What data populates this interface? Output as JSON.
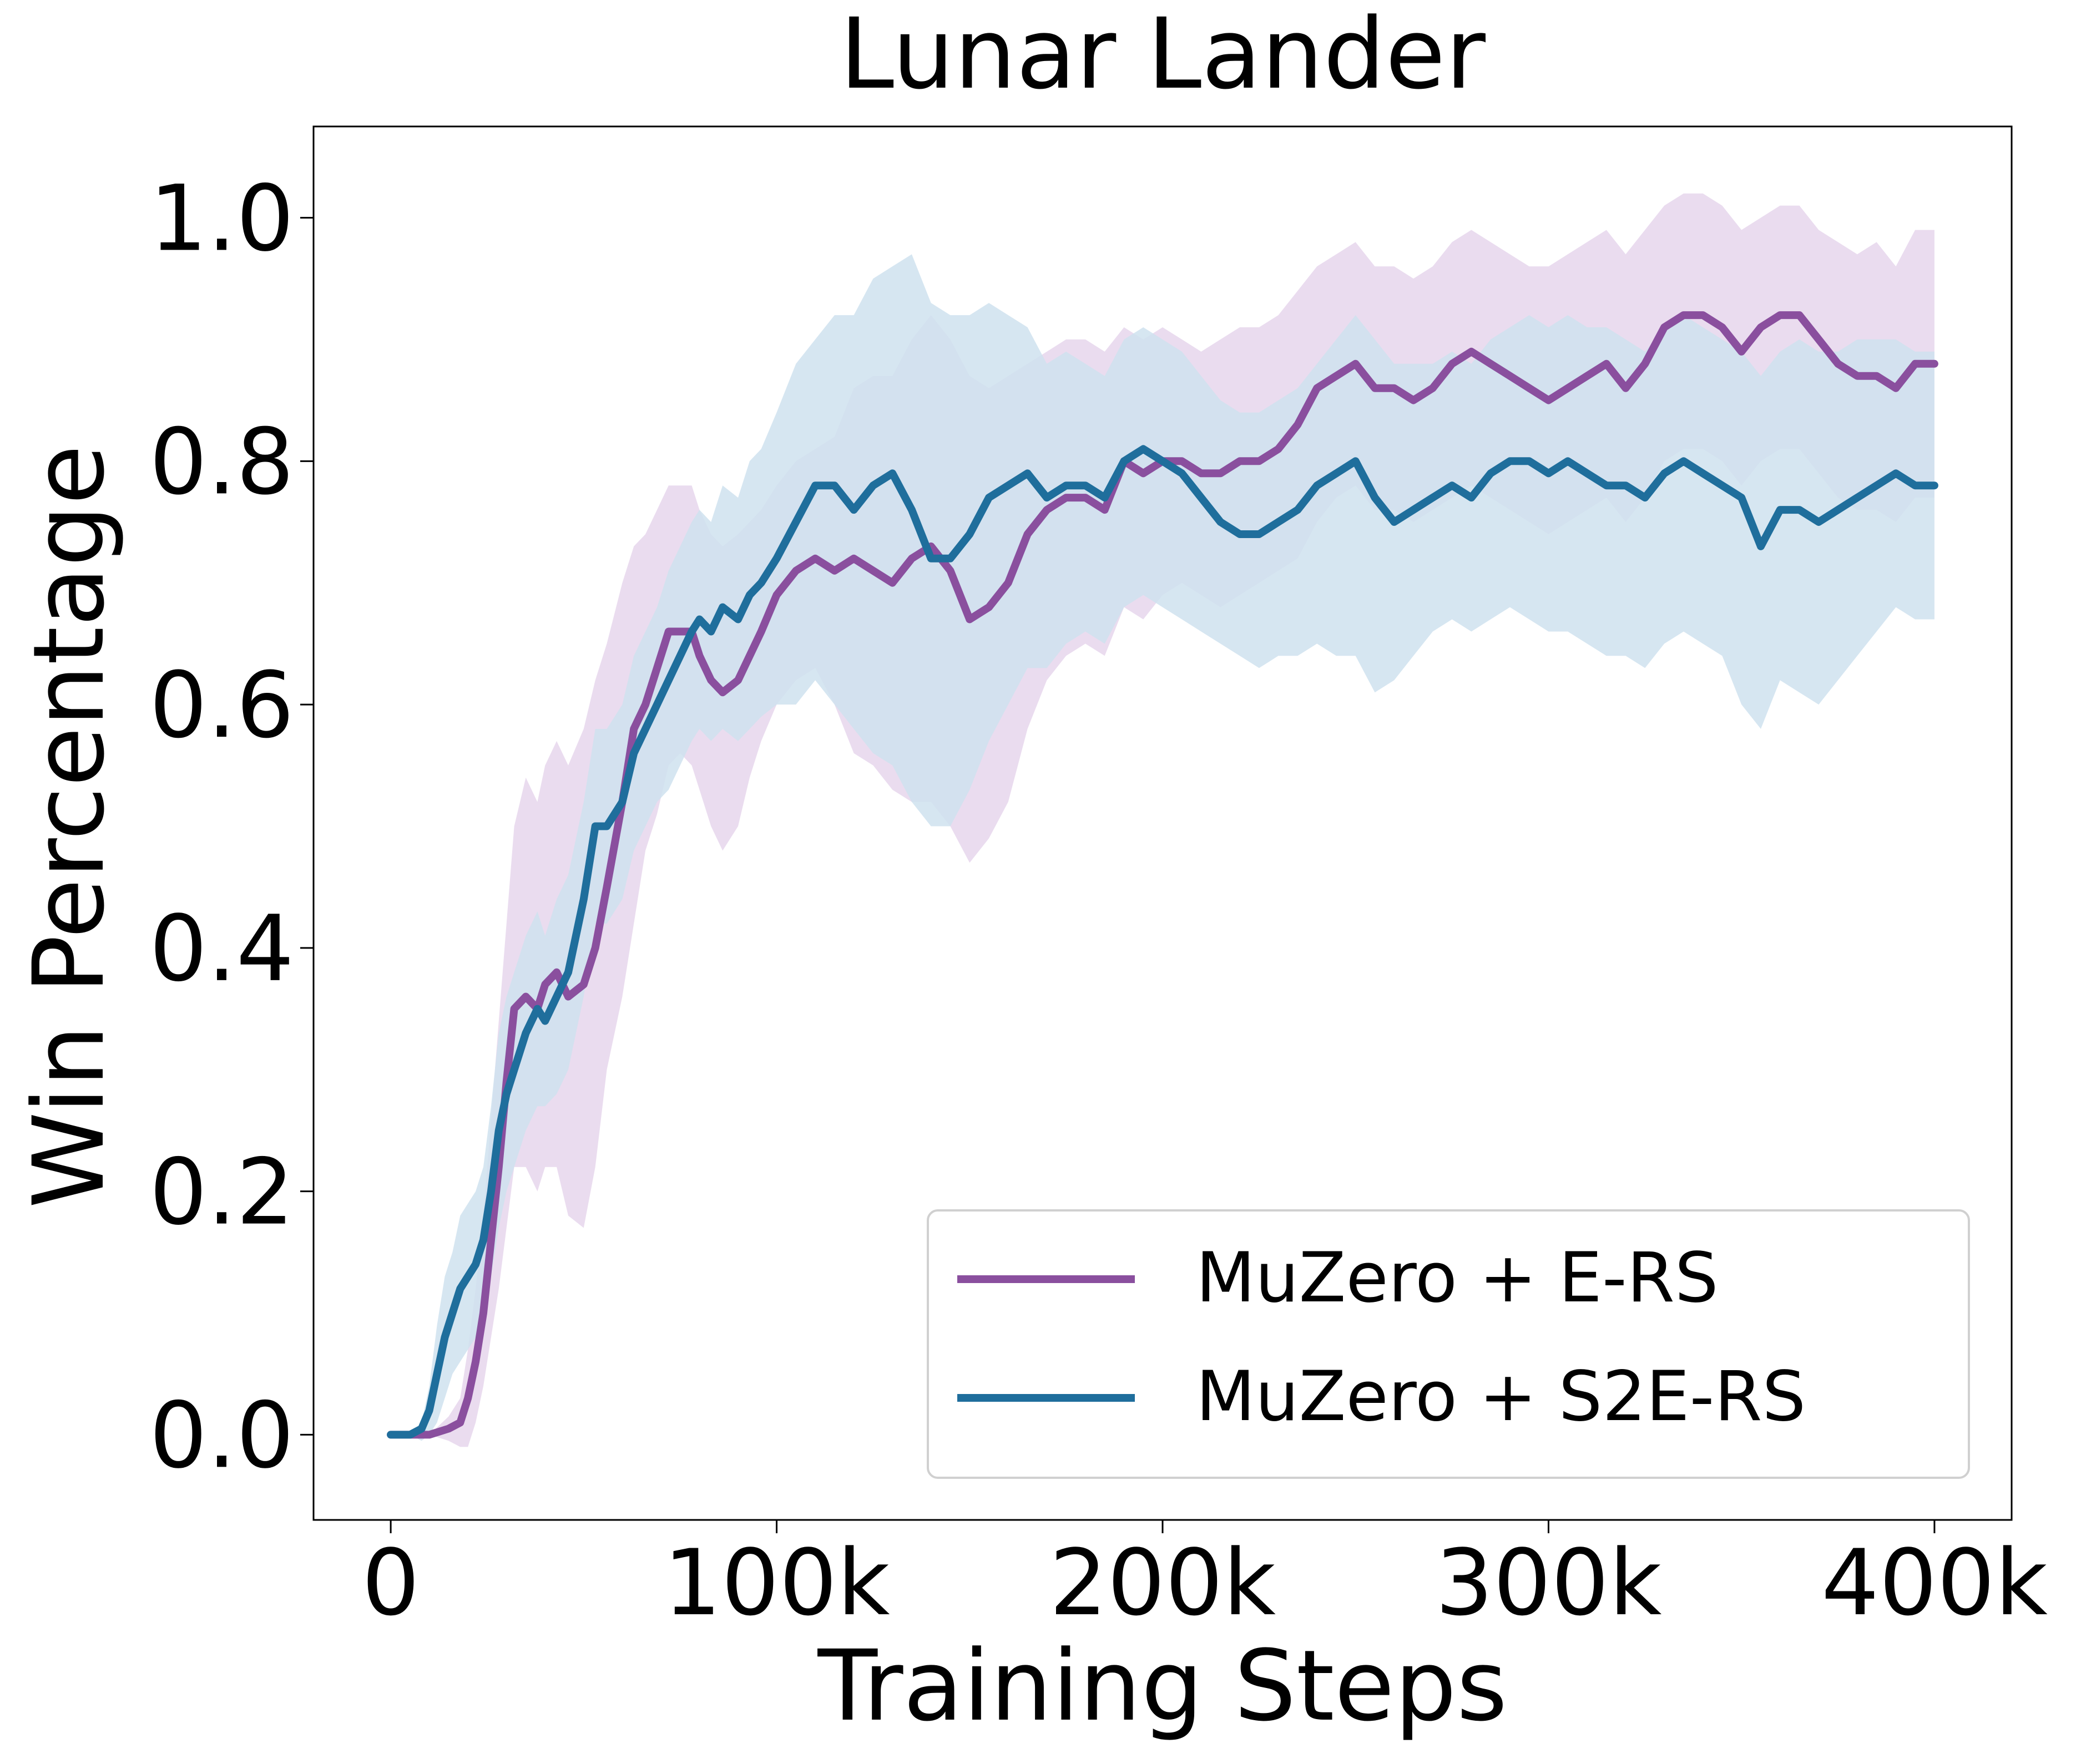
{
  "chart_data": {
    "type": "line",
    "title": "Lunar Lander",
    "xlabel": "Training Steps",
    "ylabel": "Win Percentage",
    "xlim": [
      -20000,
      420000
    ],
    "ylim": [
      -0.07,
      1.075
    ],
    "xticks": [
      0,
      100000,
      200000,
      300000,
      400000
    ],
    "xtick_labels": [
      "0",
      "100k",
      "200k",
      "300k",
      "400k"
    ],
    "yticks": [
      0.0,
      0.2,
      0.4,
      0.6,
      0.8,
      1.0
    ],
    "ytick_labels": [
      "0.0",
      "0.2",
      "0.4",
      "0.6",
      "0.8",
      "1.0"
    ],
    "grid": false,
    "legend_position": "bottom-right",
    "series": [
      {
        "name": "MuZero + E-RS",
        "color": "#8a4f9e",
        "band_color": "#e6d6ec",
        "x": [
          0,
          5000,
          10000,
          15000,
          18000,
          20000,
          22000,
          24000,
          26000,
          28000,
          30000,
          32000,
          35000,
          38000,
          40000,
          43000,
          46000,
          50000,
          53000,
          56000,
          60000,
          63000,
          66000,
          69000,
          72000,
          75000,
          78000,
          80000,
          83000,
          86000,
          90000,
          93000,
          96000,
          100000,
          105000,
          110000,
          115000,
          120000,
          125000,
          130000,
          135000,
          140000,
          145000,
          150000,
          155000,
          160000,
          165000,
          170000,
          175000,
          180000,
          185000,
          190000,
          195000,
          200000,
          205000,
          210000,
          215000,
          220000,
          225000,
          230000,
          235000,
          240000,
          245000,
          250000,
          255000,
          260000,
          265000,
          270000,
          275000,
          280000,
          285000,
          290000,
          295000,
          300000,
          305000,
          310000,
          315000,
          320000,
          325000,
          330000,
          335000,
          340000,
          345000,
          350000,
          355000,
          360000,
          365000,
          370000,
          375000,
          380000,
          385000,
          390000,
          395000,
          400000
        ],
        "values": [
          0.0,
          0.0,
          0.0,
          0.005,
          0.01,
          0.03,
          0.06,
          0.1,
          0.16,
          0.22,
          0.29,
          0.35,
          0.36,
          0.35,
          0.37,
          0.38,
          0.36,
          0.37,
          0.4,
          0.45,
          0.52,
          0.58,
          0.6,
          0.63,
          0.66,
          0.66,
          0.66,
          0.64,
          0.62,
          0.61,
          0.62,
          0.64,
          0.66,
          0.69,
          0.71,
          0.72,
          0.71,
          0.72,
          0.71,
          0.7,
          0.72,
          0.73,
          0.71,
          0.67,
          0.68,
          0.7,
          0.74,
          0.76,
          0.77,
          0.77,
          0.76,
          0.8,
          0.79,
          0.8,
          0.8,
          0.79,
          0.79,
          0.8,
          0.8,
          0.81,
          0.83,
          0.86,
          0.87,
          0.88,
          0.86,
          0.86,
          0.85,
          0.86,
          0.88,
          0.89,
          0.88,
          0.87,
          0.86,
          0.85,
          0.86,
          0.87,
          0.88,
          0.86,
          0.88,
          0.91,
          0.92,
          0.92,
          0.91,
          0.89,
          0.91,
          0.92,
          0.92,
          0.9,
          0.88,
          0.87,
          0.87,
          0.86,
          0.88,
          0.88
        ],
        "lower": [
          0.0,
          0.0,
          0.0,
          -0.005,
          -0.01,
          -0.01,
          0.01,
          0.04,
          0.08,
          0.12,
          0.17,
          0.22,
          0.22,
          0.2,
          0.22,
          0.22,
          0.18,
          0.17,
          0.22,
          0.3,
          0.36,
          0.42,
          0.48,
          0.51,
          0.55,
          0.56,
          0.55,
          0.53,
          0.5,
          0.48,
          0.5,
          0.54,
          0.57,
          0.6,
          0.62,
          0.63,
          0.6,
          0.56,
          0.55,
          0.53,
          0.52,
          0.52,
          0.5,
          0.47,
          0.49,
          0.52,
          0.58,
          0.62,
          0.64,
          0.65,
          0.64,
          0.68,
          0.67,
          0.69,
          0.7,
          0.69,
          0.68,
          0.69,
          0.7,
          0.71,
          0.72,
          0.75,
          0.77,
          0.78,
          0.76,
          0.76,
          0.75,
          0.76,
          0.77,
          0.78,
          0.77,
          0.76,
          0.75,
          0.74,
          0.75,
          0.76,
          0.77,
          0.75,
          0.77,
          0.8,
          0.81,
          0.81,
          0.8,
          0.78,
          0.8,
          0.81,
          0.81,
          0.79,
          0.77,
          0.76,
          0.76,
          0.75,
          0.77,
          0.77
        ],
        "upper": [
          0.0,
          0.0,
          0.0,
          0.015,
          0.03,
          0.07,
          0.12,
          0.18,
          0.26,
          0.34,
          0.42,
          0.5,
          0.54,
          0.52,
          0.55,
          0.57,
          0.55,
          0.58,
          0.62,
          0.65,
          0.7,
          0.73,
          0.74,
          0.76,
          0.78,
          0.78,
          0.78,
          0.76,
          0.74,
          0.73,
          0.74,
          0.75,
          0.76,
          0.78,
          0.8,
          0.81,
          0.82,
          0.86,
          0.87,
          0.87,
          0.9,
          0.92,
          0.9,
          0.87,
          0.86,
          0.87,
          0.88,
          0.89,
          0.9,
          0.9,
          0.89,
          0.91,
          0.9,
          0.91,
          0.9,
          0.89,
          0.9,
          0.91,
          0.91,
          0.92,
          0.94,
          0.96,
          0.97,
          0.98,
          0.96,
          0.96,
          0.95,
          0.96,
          0.98,
          0.99,
          0.98,
          0.97,
          0.96,
          0.96,
          0.97,
          0.98,
          0.99,
          0.97,
          0.99,
          1.01,
          1.02,
          1.02,
          1.01,
          0.99,
          1.0,
          1.01,
          1.01,
          0.99,
          0.98,
          0.97,
          0.98,
          0.96,
          0.99,
          0.99
        ]
      },
      {
        "name": "MuZero + S2E-RS",
        "color": "#1f6e9c",
        "band_color": "#cfe2ef",
        "x": [
          0,
          5000,
          8000,
          10000,
          12000,
          14000,
          16000,
          18000,
          20000,
          22000,
          24000,
          26000,
          28000,
          30000,
          32000,
          35000,
          38000,
          40000,
          43000,
          46000,
          50000,
          53000,
          56000,
          60000,
          63000,
          66000,
          69000,
          72000,
          75000,
          78000,
          80000,
          83000,
          86000,
          90000,
          93000,
          96000,
          100000,
          105000,
          110000,
          115000,
          120000,
          125000,
          130000,
          135000,
          140000,
          145000,
          150000,
          155000,
          160000,
          165000,
          170000,
          175000,
          180000,
          185000,
          190000,
          195000,
          200000,
          205000,
          210000,
          215000,
          220000,
          225000,
          230000,
          235000,
          240000,
          245000,
          250000,
          255000,
          260000,
          265000,
          270000,
          275000,
          280000,
          285000,
          290000,
          295000,
          300000,
          305000,
          310000,
          315000,
          320000,
          325000,
          330000,
          335000,
          340000,
          345000,
          350000,
          355000,
          360000,
          365000,
          370000,
          375000,
          380000,
          385000,
          390000,
          395000,
          400000
        ],
        "values": [
          0.0,
          0.0,
          0.005,
          0.02,
          0.05,
          0.08,
          0.1,
          0.12,
          0.13,
          0.14,
          0.16,
          0.2,
          0.25,
          0.28,
          0.3,
          0.33,
          0.35,
          0.34,
          0.36,
          0.38,
          0.44,
          0.5,
          0.5,
          0.52,
          0.56,
          0.58,
          0.6,
          0.62,
          0.64,
          0.66,
          0.67,
          0.66,
          0.68,
          0.67,
          0.69,
          0.7,
          0.72,
          0.75,
          0.78,
          0.78,
          0.76,
          0.78,
          0.79,
          0.76,
          0.72,
          0.72,
          0.74,
          0.77,
          0.78,
          0.79,
          0.77,
          0.78,
          0.78,
          0.77,
          0.8,
          0.81,
          0.8,
          0.79,
          0.77,
          0.75,
          0.74,
          0.74,
          0.75,
          0.76,
          0.78,
          0.79,
          0.8,
          0.77,
          0.75,
          0.76,
          0.77,
          0.78,
          0.77,
          0.79,
          0.8,
          0.8,
          0.79,
          0.8,
          0.79,
          0.78,
          0.78,
          0.77,
          0.79,
          0.8,
          0.79,
          0.78,
          0.77,
          0.73,
          0.76,
          0.76,
          0.75,
          0.76,
          0.77,
          0.78,
          0.79,
          0.78,
          0.78
        ],
        "lower": [
          0.0,
          0.0,
          -0.005,
          0.0,
          0.01,
          0.03,
          0.05,
          0.06,
          0.07,
          0.08,
          0.1,
          0.13,
          0.17,
          0.2,
          0.22,
          0.25,
          0.27,
          0.27,
          0.28,
          0.3,
          0.36,
          0.42,
          0.42,
          0.44,
          0.48,
          0.5,
          0.52,
          0.53,
          0.55,
          0.57,
          0.58,
          0.57,
          0.58,
          0.57,
          0.58,
          0.59,
          0.6,
          0.6,
          0.62,
          0.6,
          0.58,
          0.56,
          0.55,
          0.52,
          0.5,
          0.5,
          0.53,
          0.57,
          0.6,
          0.63,
          0.63,
          0.65,
          0.66,
          0.65,
          0.68,
          0.69,
          0.68,
          0.67,
          0.66,
          0.65,
          0.64,
          0.63,
          0.64,
          0.64,
          0.65,
          0.64,
          0.64,
          0.61,
          0.62,
          0.64,
          0.66,
          0.67,
          0.66,
          0.67,
          0.68,
          0.67,
          0.66,
          0.66,
          0.65,
          0.64,
          0.64,
          0.63,
          0.65,
          0.66,
          0.65,
          0.64,
          0.6,
          0.58,
          0.62,
          0.61,
          0.6,
          0.62,
          0.64,
          0.66,
          0.68,
          0.67,
          0.67
        ],
        "upper": [
          0.0,
          0.0,
          0.01,
          0.04,
          0.09,
          0.13,
          0.15,
          0.18,
          0.19,
          0.2,
          0.22,
          0.27,
          0.33,
          0.36,
          0.38,
          0.41,
          0.43,
          0.41,
          0.44,
          0.46,
          0.52,
          0.58,
          0.58,
          0.6,
          0.64,
          0.66,
          0.68,
          0.71,
          0.73,
          0.75,
          0.76,
          0.75,
          0.78,
          0.77,
          0.8,
          0.81,
          0.84,
          0.88,
          0.9,
          0.92,
          0.92,
          0.95,
          0.96,
          0.97,
          0.93,
          0.92,
          0.92,
          0.93,
          0.92,
          0.91,
          0.88,
          0.89,
          0.88,
          0.87,
          0.9,
          0.91,
          0.9,
          0.89,
          0.87,
          0.85,
          0.84,
          0.84,
          0.85,
          0.86,
          0.88,
          0.9,
          0.92,
          0.9,
          0.88,
          0.88,
          0.88,
          0.89,
          0.88,
          0.9,
          0.91,
          0.92,
          0.91,
          0.92,
          0.91,
          0.91,
          0.9,
          0.89,
          0.91,
          0.92,
          0.91,
          0.9,
          0.89,
          0.87,
          0.89,
          0.9,
          0.89,
          0.89,
          0.9,
          0.9,
          0.9,
          0.89,
          0.89
        ]
      }
    ]
  }
}
